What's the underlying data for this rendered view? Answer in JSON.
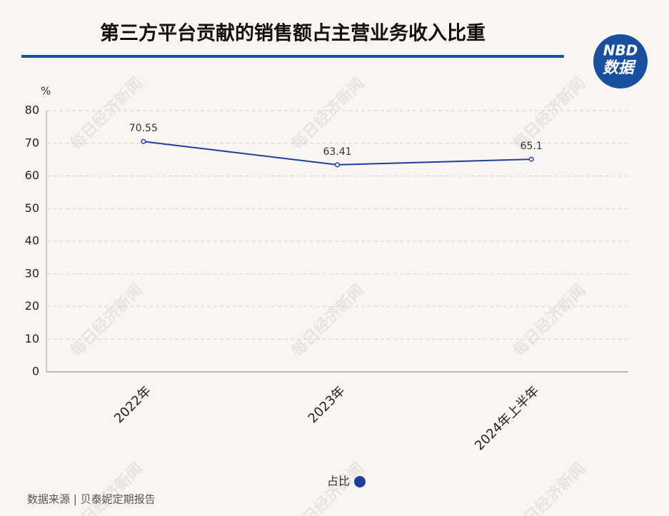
{
  "chart_data": {
    "type": "line",
    "title": "第三方平台贡献的销售额占主营业务收入比重",
    "y_unit": "%",
    "categories": [
      "2022年",
      "2023年",
      "2024年上半年"
    ],
    "series": [
      {
        "name": "占比",
        "color": "#1f3f9c",
        "values": [
          70.55,
          63.41,
          65.1
        ]
      }
    ],
    "ylim": [
      0,
      80
    ],
    "yticks": [
      0,
      10,
      20,
      30,
      40,
      50,
      60,
      70,
      80
    ],
    "grid": true,
    "legend": "bottom",
    "source": "数据来源 | 贝泰妮定期报告",
    "logo_text": "NBD",
    "logo_subtext": "数据",
    "watermark": "每日经济新闻"
  }
}
